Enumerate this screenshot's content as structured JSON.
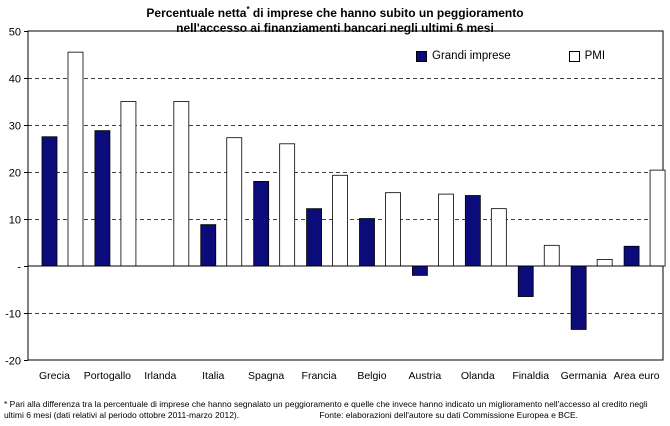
{
  "title_line1_pre": "Percentuale netta",
  "title_mark": "*",
  "title_line1_post": " di imprese che hanno subito un peggioramento",
  "title_line2": "nell'accesso ai finanziamenti bancari negli ultimi 6 mesi",
  "footnote_text": "* Pari alla differenza tra la percentuale di imprese che hanno segnalato un peggioramento e quelle che invece hanno indicato un miglioramento nell'accesso al credito negli ultimi 6 mesi (dati relativi al periodo ottobre 2011-marzo 2012).",
  "source_text": "Fonte: elaborazioni dell'autore su dati Commissione Europea e BCE.",
  "colors": {
    "grandi": "#0b0b7a",
    "pmi": "#ffffff"
  },
  "chart_data": {
    "type": "bar",
    "categories": [
      "Grecia",
      "Portogallo",
      "Irlanda",
      "Italia",
      "Spagna",
      "Francia",
      "Belgio",
      "Austria",
      "Olanda",
      "Finaldia",
      "Germania",
      "Area euro"
    ],
    "series": [
      {
        "name": "Grandi imprese",
        "values": [
          27.5,
          28.8,
          null,
          8.8,
          18,
          12.2,
          10.1,
          -2,
          15,
          -6.5,
          -13.5,
          4.2
        ]
      },
      {
        "name": "PMI",
        "values": [
          45.5,
          35,
          35,
          27.3,
          26,
          19.3,
          15.6,
          15.3,
          12.2,
          4.4,
          1.4,
          20.4
        ]
      }
    ],
    "ylim": [
      -20,
      50
    ],
    "yticks": [
      -20,
      -10,
      0,
      10,
      20,
      30,
      40,
      50
    ],
    "ytick_labels": [
      "-20",
      "-10",
      "-",
      "10",
      "20",
      "30",
      "40",
      "50"
    ],
    "grid": "dashed horizontal",
    "legend_position": "top-right"
  }
}
